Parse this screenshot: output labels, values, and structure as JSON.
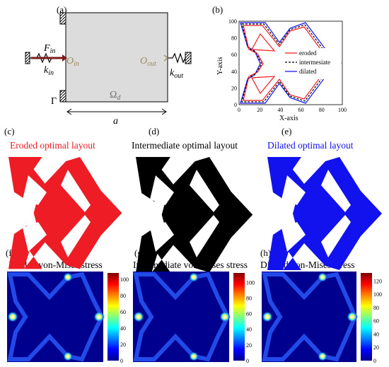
{
  "panels": {
    "a": {
      "letter": "(a)",
      "labels": {
        "f_in": "F",
        "f_in_sub": "in",
        "k_in": "k",
        "k_in_sub": "in",
        "o_in": "O",
        "o_in_sub": "in",
        "o_out": "O",
        "o_out_sub": "out",
        "k_out": "k",
        "k_out_sub": "out",
        "gamma": "Γ",
        "omega": "Ω",
        "omega_sub": "d",
        "a": "a"
      }
    },
    "b": {
      "letter": "(b)",
      "legend": [
        "eroded",
        "intermesiate",
        "dilated"
      ]
    },
    "c": {
      "letter": "(c)",
      "caption": "Eroded optimal layout"
    },
    "d": {
      "letter": "(d)",
      "caption": "Intermediate optimal layout"
    },
    "e": {
      "letter": "(e)",
      "caption": "Dilated optimal layout"
    },
    "f": {
      "letter": "(f)",
      "caption": "Eroded von-Mises stress"
    },
    "g": {
      "letter": "(g)",
      "caption": "Intermediate von-Mises stress"
    },
    "h": {
      "letter": "(h)",
      "caption": "Dilated von-Mises stress"
    }
  },
  "colors": {
    "eroded": "#ee1c24",
    "intermediate": "#000000",
    "dilated": "#1212ee",
    "stress_bg": "#00008f",
    "domain_fill": "#dcdcdc",
    "o_label": "#9a8a5a"
  },
  "chart_data": [
    {
      "type": "line",
      "xlabel": "X-axis",
      "ylabel": "Y-axis",
      "xlim": [
        0,
        100
      ],
      "ylim": [
        0,
        100
      ],
      "xticks": [
        "0",
        "20",
        "40",
        "60",
        "80",
        "100"
      ],
      "yticks": [
        "0",
        "20",
        "40",
        "60",
        "80",
        "100"
      ],
      "legend_position": "right",
      "series": [
        {
          "name": "eroded",
          "style": "solid"
        },
        {
          "name": "intermesiate",
          "style": "dashed"
        },
        {
          "name": "dilated",
          "style": "solid"
        }
      ]
    },
    {
      "type": "heatmap",
      "colorbar_ticks": [
        "0",
        "20",
        "40",
        "60",
        "80",
        "100"
      ]
    },
    {
      "type": "heatmap",
      "colorbar_ticks": [
        "0",
        "20",
        "40",
        "60",
        "80",
        "100"
      ]
    },
    {
      "type": "heatmap",
      "colorbar_ticks": [
        "0",
        "20",
        "40",
        "60",
        "80",
        "100",
        "120"
      ]
    }
  ]
}
